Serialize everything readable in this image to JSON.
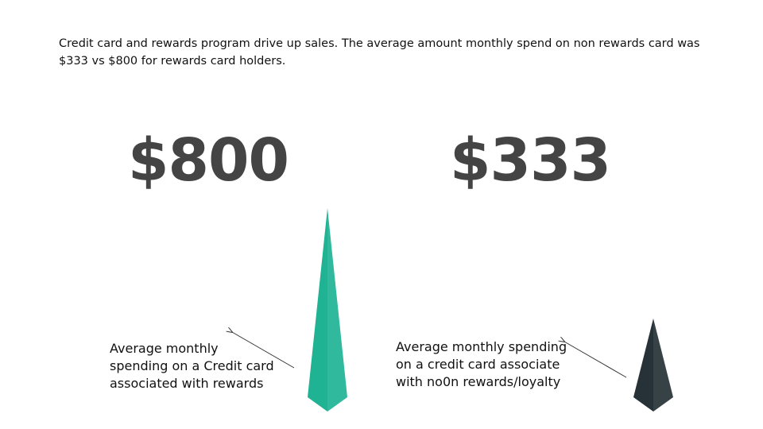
{
  "headline": "Credit card and rewards program drive up sales. The average amount monthly spend  on non rewards card was $333 vs $800 for rewards card holders.",
  "values": {
    "rewards_label": "$800",
    "non_rewards_label": "$333"
  },
  "captions": {
    "rewards": "Average monthly spending on a Credit card associated with rewards",
    "non_rewards": "Average monthly spending on a credit card associate with no0n rewards/loyalty"
  },
  "chart_data": {
    "type": "bar",
    "categories": [
      "Average monthly spending on a Credit card associated with rewards",
      "Average monthly spending on a credit card associate with no0n rewards/loyalty"
    ],
    "values": [
      800,
      333
    ],
    "colors": [
      "#1fb394",
      "#263238"
    ],
    "title": "",
    "xlabel": "",
    "ylabel": ""
  }
}
